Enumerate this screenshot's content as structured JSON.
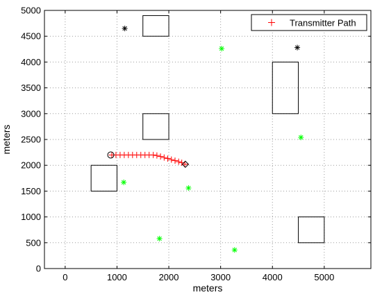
{
  "chart_data": {
    "type": "scatter",
    "xlabel": "meters",
    "ylabel": "meters",
    "xlim": [
      -400,
      5900
    ],
    "ylim": [
      0,
      5000
    ],
    "x_ticks": [
      0,
      1000,
      2000,
      3000,
      4000,
      5000
    ],
    "y_ticks": [
      0,
      500,
      1000,
      1500,
      2000,
      2500,
      3000,
      3500,
      4000,
      4500,
      5000
    ],
    "grid": true,
    "grid_style": "dotted",
    "legend": {
      "position": "top-right",
      "entries": [
        {
          "label": "Transmitter Path",
          "marker": "+",
          "color": "#ff0000"
        }
      ]
    },
    "series": [
      {
        "name": "Transmitter Path",
        "marker": "+",
        "color": "#ff0000",
        "points": [
          [
            900,
            2200
          ],
          [
            980,
            2200
          ],
          [
            1060,
            2200
          ],
          [
            1140,
            2200
          ],
          [
            1220,
            2200
          ],
          [
            1300,
            2200
          ],
          [
            1380,
            2200
          ],
          [
            1460,
            2200
          ],
          [
            1540,
            2200
          ],
          [
            1620,
            2200
          ],
          [
            1700,
            2200
          ],
          [
            1770,
            2190
          ],
          [
            1840,
            2170
          ],
          [
            1910,
            2150
          ],
          [
            1980,
            2130
          ],
          [
            2050,
            2110
          ],
          [
            2120,
            2090
          ],
          [
            2190,
            2070
          ],
          [
            2250,
            2050
          ],
          [
            2310,
            2020
          ]
        ]
      }
    ],
    "path_start": {
      "x": 880,
      "y": 2200,
      "marker": "circle",
      "color": "#000000"
    },
    "path_end": {
      "x": 2320,
      "y": 2020,
      "marker": "diamond",
      "color": "#000000"
    },
    "black_stars": [
      [
        1150,
        4650
      ],
      [
        4480,
        4280
      ]
    ],
    "green_stars": [
      [
        3020,
        4260
      ],
      [
        4550,
        2540
      ],
      [
        1130,
        1670
      ],
      [
        2380,
        1560
      ],
      [
        1820,
        580
      ],
      [
        3270,
        360
      ]
    ],
    "star_colors": {
      "black": "#000000",
      "green": "#00ff00"
    },
    "obstacles": [
      {
        "x0": 1500,
        "x1": 2000,
        "y0": 4500,
        "y1": 4900
      },
      {
        "x0": 4000,
        "x1": 4500,
        "y0": 3000,
        "y1": 4000
      },
      {
        "x0": 1500,
        "x1": 2000,
        "y0": 2500,
        "y1": 3000
      },
      {
        "x0": 500,
        "x1": 1000,
        "y0": 1500,
        "y1": 2000
      },
      {
        "x0": 4500,
        "x1": 5000,
        "y0": 500,
        "y1": 1000
      }
    ]
  }
}
